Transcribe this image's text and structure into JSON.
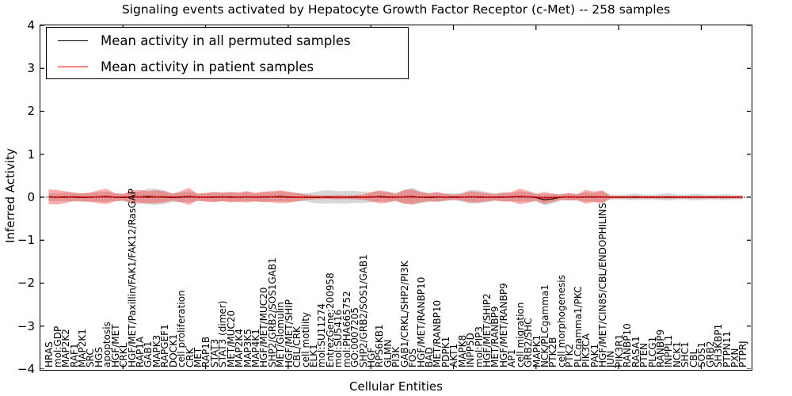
{
  "figure": {
    "title": "Signaling events activated by Hepatocyte Growth Factor Receptor (c-Met) -- 258 samples",
    "xlabel": "Cellular Entities",
    "ylabel": "Inferred Activity"
  },
  "legend": {
    "items": [
      {
        "label": "Mean activity in all permuted samples",
        "color": "#000000"
      },
      {
        "label": "Mean activity in patient samples",
        "color": "#ff0000"
      }
    ]
  },
  "chart_data": {
    "type": "line",
    "title": "Signaling events activated by Hepatocyte Growth Factor Receptor (c-Met) -- 258 samples",
    "xlabel": "Cellular Entities",
    "ylabel": "Inferred Activity",
    "ylim": [
      -4,
      4
    ],
    "yticks": [
      4,
      3,
      2,
      1,
      0,
      -1,
      -2,
      -3,
      -4
    ],
    "x_major_tick_every": 10,
    "grid": false,
    "legend_position": "upper left",
    "zero_line": {
      "value": 0,
      "style": "dotted",
      "color": "#000000"
    },
    "band_colors": {
      "permuted": "rgba(130,130,130,0.32)",
      "patient": "rgba(255,0,0,0.32)"
    },
    "categories": [
      "HRAS",
      "mol:GDP",
      "MAP2K2",
      "RAF1",
      "MAP2K1",
      "SRC",
      "HGS",
      "apoptosis",
      "HGF/MET",
      "CRKL",
      "HGF/MET/Paxillin/FAK1/FAK12/RasGAP",
      "RAP1A",
      "GAB1",
      "MAPK3",
      "RAPGEF1",
      "DOCK1",
      "cell proliferation",
      "CRK",
      "MET",
      "RAP1B",
      "STAT3",
      "STAT3 (dimer)",
      "MET/MUC20",
      "MAP2K4",
      "MAP3K5",
      "MAP4K1",
      "HGF/MET/MUC20",
      "SHP2/GRB2/SOS1GAB1",
      "MET/Glomulin",
      "HGF/MET/SHIP",
      "CBL/CRK",
      "cell motility",
      "ELK1",
      "mol:SU11274",
      "EntrezGene:200958",
      "mol:SU5416",
      "mol:PHA665752",
      "GO:0007205",
      "SHP2/GRB2/SOS1/GAB1",
      "HGF",
      "RPS6KB1",
      "GLMN",
      "PI3K",
      "GAB1/CRKL/SHP2/PI3K",
      "FOS",
      "HGF/MET/RANBP10",
      "BAD",
      "MET/RANBP10",
      "PDPK1",
      "AKT1",
      "MAPK8",
      "INPP5D",
      "mol:PIP3",
      "HGF/MET/SHIP2",
      "MET/RANBP9",
      "HGF/MET/RANBP9",
      "AP1",
      "cell migration",
      "GRB2/SHC",
      "MAPK1",
      "NCK/PLCgamma1",
      "PTK2B",
      "cell morphogenesis",
      "PTK2",
      "PLCgamma1/PKC",
      "PIK3CA",
      "PAK1",
      "HGF/MET/CIN85/CBL/ENDOPHILINS",
      "JUN",
      "PIK3R1",
      "RANBP10",
      "RASA1",
      "PTEN",
      "PLCG1",
      "RANBP9",
      "INPPL1",
      "NCK1",
      "SHC1",
      "CBL",
      "SOS1",
      "GRB2",
      "SH3KBP1",
      "PTPN11",
      "PXN",
      "PTPRJ"
    ],
    "series": [
      {
        "name": "Mean activity in all permuted samples",
        "color": "#000000",
        "line_width": 1.1,
        "values": [
          0,
          0,
          0.01,
          0,
          -0.01,
          0,
          0.01,
          0.01,
          0,
          -0.01,
          0,
          0.01,
          0.02,
          0.01,
          0,
          -0.01,
          0,
          0.01,
          0,
          0,
          0.01,
          0,
          0.01,
          0,
          0.01,
          0,
          0,
          0.01,
          0.02,
          0.01,
          0,
          0,
          -0.01,
          0,
          0.01,
          0,
          0,
          0.01,
          0,
          0,
          0.02,
          0.01,
          0,
          0.01,
          0.02,
          0,
          -0.01,
          0,
          0,
          0.01,
          0,
          0.01,
          0.01,
          0,
          0,
          0.01,
          0,
          0.02,
          0.01,
          -0.01,
          -0.06,
          -0.04,
          0,
          0.01,
          0,
          0.01,
          0,
          0.01,
          0,
          0,
          0,
          0.01,
          0,
          0,
          0,
          0.01,
          0,
          0,
          0,
          0,
          0,
          0,
          0,
          0,
          0
        ],
        "band_halfwidth": [
          0.09,
          0.09,
          0.1,
          0.1,
          0.1,
          0.1,
          0.11,
          0.12,
          0.09,
          0.09,
          0.11,
          0.12,
          0.18,
          0.19,
          0.16,
          0.1,
          0.11,
          0.13,
          0.09,
          0.1,
          0.11,
          0.1,
          0.11,
          0.1,
          0.11,
          0.1,
          0.11,
          0.11,
          0.12,
          0.11,
          0.1,
          0.09,
          0.12,
          0.15,
          0.15,
          0.14,
          0.15,
          0.14,
          0.13,
          0.12,
          0.12,
          0.11,
          0.1,
          0.15,
          0.2,
          0.14,
          0.1,
          0.11,
          0.09,
          0.08,
          0.1,
          0.16,
          0.15,
          0.12,
          0.09,
          0.11,
          0.1,
          0.12,
          0.11,
          0.09,
          0.12,
          0.11,
          0.08,
          0.08,
          0.08,
          0.11,
          0.1,
          0.13,
          0.06,
          0.05,
          0.06,
          0.08,
          0.06,
          0.05,
          0.07,
          0.09,
          0.06,
          0.05,
          0.08,
          0.07,
          0.05,
          0.06,
          0.07,
          0.05,
          0.05
        ]
      },
      {
        "name": "Mean activity in patient samples",
        "color": "#ff0000",
        "line_width": 1.4,
        "values": [
          0.01,
          0,
          0,
          0.01,
          0,
          0,
          0.01,
          0.02,
          0,
          0,
          0.01,
          0.01,
          0,
          0.01,
          0.01,
          0,
          0.01,
          0.02,
          0,
          0,
          0,
          0.01,
          0,
          0,
          0.01,
          0,
          0.01,
          0.01,
          0.01,
          0,
          0,
          0,
          0,
          0,
          0,
          0,
          0,
          0,
          0,
          0.01,
          0.01,
          0,
          0,
          0.01,
          0.01,
          0,
          0,
          0.01,
          0,
          0,
          0,
          0.01,
          0,
          0,
          0,
          0,
          0.01,
          0.02,
          0.01,
          0,
          -0.02,
          -0.01,
          0,
          0.01,
          0,
          0.01,
          0.01,
          0.01,
          0,
          0,
          0,
          0,
          0,
          0,
          0,
          0,
          0,
          0,
          0,
          0,
          0,
          0,
          0,
          0,
          0
        ],
        "band_halfwidth": [
          0.17,
          0.17,
          0.14,
          0.1,
          0.09,
          0.11,
          0.15,
          0.18,
          0.1,
          0.07,
          0.15,
          0.16,
          0.14,
          0.15,
          0.13,
          0.08,
          0.13,
          0.2,
          0.08,
          0.1,
          0.12,
          0.1,
          0.12,
          0.11,
          0.13,
          0.1,
          0.12,
          0.13,
          0.15,
          0.13,
          0.1,
          0.07,
          0.05,
          0.04,
          0.04,
          0.05,
          0.04,
          0.05,
          0.06,
          0.1,
          0.15,
          0.13,
          0.08,
          0.16,
          0.17,
          0.12,
          0.09,
          0.11,
          0.08,
          0.06,
          0.08,
          0.13,
          0.12,
          0.1,
          0.07,
          0.1,
          0.11,
          0.18,
          0.14,
          0.08,
          0.14,
          0.1,
          0.06,
          0.09,
          0.07,
          0.16,
          0.12,
          0.15,
          0.03,
          0.03,
          0.03,
          0.03,
          0.03,
          0.03,
          0.03,
          0.03,
          0.03,
          0.03,
          0.03,
          0.03,
          0.03,
          0.03,
          0.03,
          0.03,
          0.03
        ]
      }
    ]
  }
}
